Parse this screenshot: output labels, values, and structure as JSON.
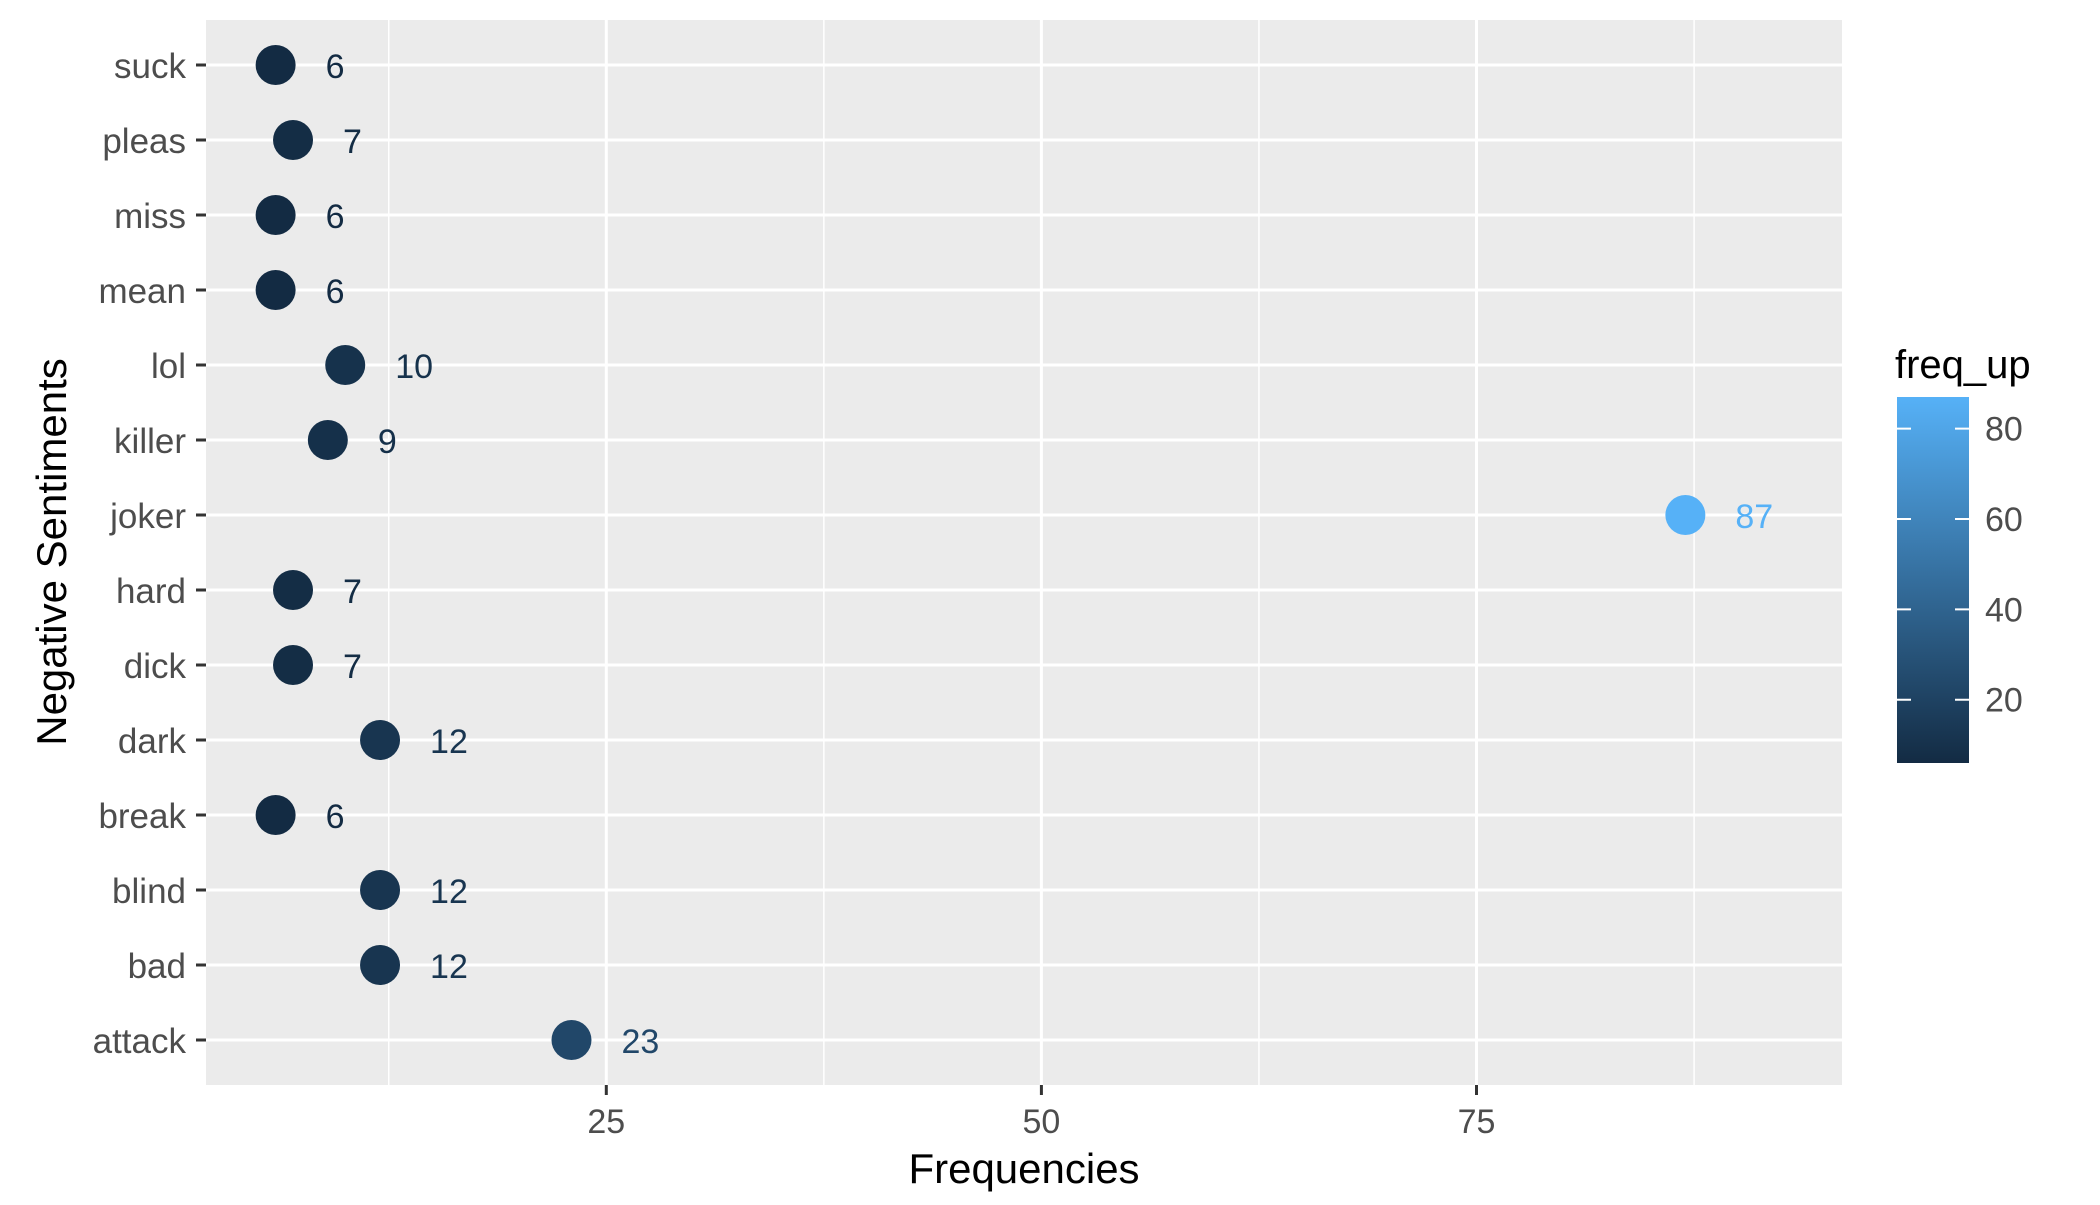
{
  "chart_data": {
    "type": "scatter",
    "title": "",
    "xlabel": "Frequencies",
    "ylabel": "Negative Sentiments",
    "xlim": [
      2,
      96
    ],
    "x_ticks": [
      25,
      50,
      75
    ],
    "x_minor_ticks": [
      12.5,
      37.5,
      62.5,
      87.5
    ],
    "grid": true,
    "categories": [
      "attack",
      "bad",
      "blind",
      "break",
      "dark",
      "dick",
      "hard",
      "joker",
      "killer",
      "lol",
      "mean",
      "miss",
      "pleas",
      "suck"
    ],
    "values": [
      23,
      12,
      12,
      6,
      12,
      7,
      7,
      87,
      9,
      10,
      6,
      6,
      7,
      6
    ],
    "data_labels": [
      "23",
      "12",
      "12",
      "6",
      "12",
      "7",
      "7",
      "87",
      "9",
      "10",
      "6",
      "6",
      "7",
      "6"
    ],
    "legend": {
      "title": "freq_up",
      "placement": "right",
      "type": "colorbar",
      "range": [
        6,
        87
      ],
      "ticks": [
        20,
        40,
        60,
        80
      ],
      "colors": {
        "low": "#132b43",
        "high": "#56b1f7"
      }
    },
    "colors": {
      "panel_background": "#ebebeb",
      "grid": "#ffffff",
      "axis_text": "#4d4d4d",
      "title_text": "#000000"
    }
  }
}
